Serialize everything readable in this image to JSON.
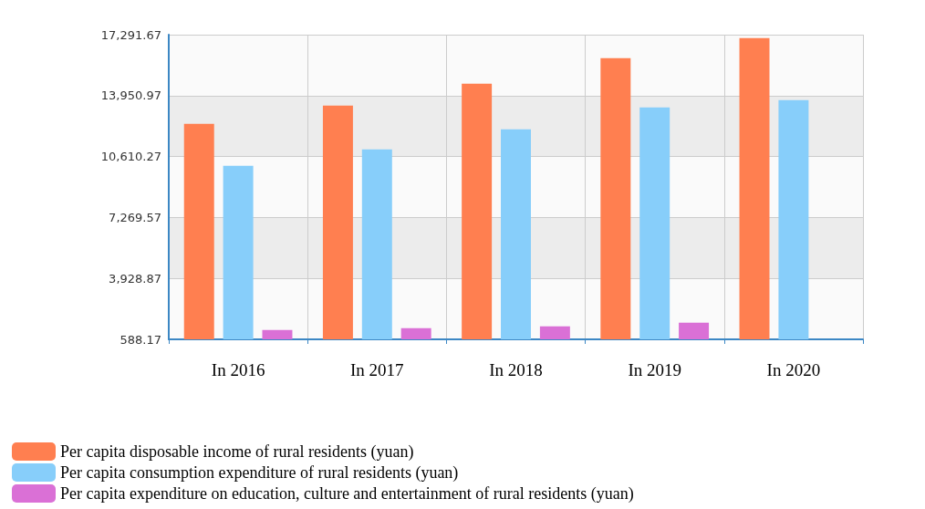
{
  "chart_data": {
    "type": "bar",
    "categories": [
      "In 2016",
      "In 2017",
      "In 2018",
      "In 2019",
      "In 2020"
    ],
    "series": [
      {
        "name": "Per capita disposable income of rural residents (yuan)",
        "color": "#ff7f50",
        "values": [
          12400,
          13400,
          14600,
          16000,
          17100
        ]
      },
      {
        "name": "Per capita consumption expenditure of rural residents (yuan)",
        "color": "#87cefa",
        "values": [
          10100,
          11000,
          12100,
          13300,
          13700
        ]
      },
      {
        "name": "Per capita expenditure on education, culture and entertainment of rural residents (yuan)",
        "color": "#da70d6",
        "values": [
          1100,
          1200,
          1300,
          1500,
          null
        ]
      }
    ],
    "ylim": [
      588.17,
      17291.67
    ],
    "yticks": [
      {
        "value": 588.17,
        "label": "588.17"
      },
      {
        "value": 3928.87,
        "label": "3,928.87"
      },
      {
        "value": 7269.57,
        "label": "7,269.57"
      },
      {
        "value": 10610.27,
        "label": "10,610.27"
      },
      {
        "value": 13950.97,
        "label": "13,950.97"
      },
      {
        "value": 17291.67,
        "label": "17,291.67"
      }
    ],
    "grid": true,
    "legend": "bottom left"
  }
}
